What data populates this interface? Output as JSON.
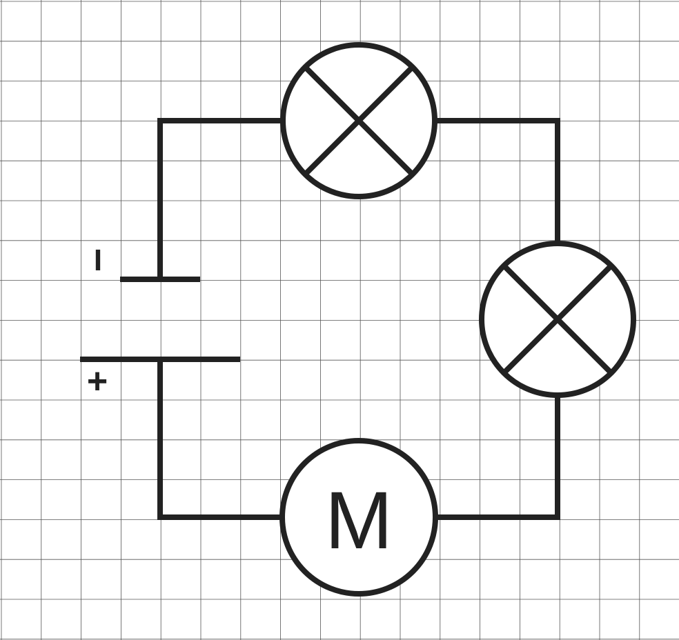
{
  "diagram": {
    "type": "electric-circuit",
    "battery": {
      "negative_label": "I",
      "positive_label": "+"
    },
    "components": [
      {
        "kind": "lamp",
        "symbol": "lamp-icon"
      },
      {
        "kind": "lamp",
        "symbol": "lamp-icon"
      },
      {
        "kind": "motor",
        "label": "M"
      }
    ],
    "colors": {
      "ink": "#222222",
      "grid": "#555555",
      "background": "#ffffff"
    }
  }
}
